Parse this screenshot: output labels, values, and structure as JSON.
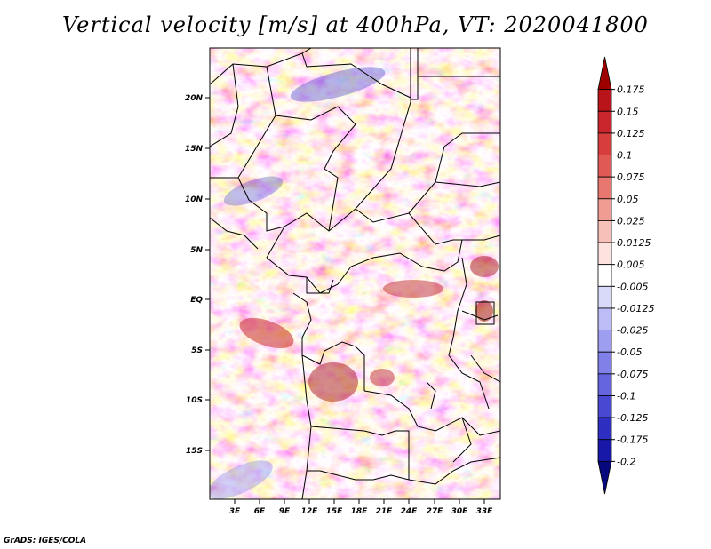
{
  "title": "Vertical velocity [m/s] at 400hPa, VT: 2020041800",
  "credit": "GrADS: IGES/COLA",
  "map": {
    "lat_ticks": [
      "20N",
      "15N",
      "10N",
      "5N",
      "EQ",
      "5S",
      "10S",
      "15S"
    ],
    "lon_ticks": [
      "3E",
      "6E",
      "9E",
      "12E",
      "15E",
      "18E",
      "21E",
      "24E",
      "27E",
      "30E",
      "33E"
    ]
  },
  "colorbar": {
    "labels": [
      "0.175",
      "0.15",
      "0.125",
      "0.1",
      "0.075",
      "0.05",
      "0.025",
      "0.0125",
      "0.005",
      "-0.005",
      "-0.0125",
      "-0.025",
      "-0.05",
      "-0.075",
      "-0.1",
      "-0.125",
      "-0.175",
      "-0.2"
    ],
    "colors": [
      "#9e0000",
      "#b8141a",
      "#c8262c",
      "#d63e3e",
      "#e05a55",
      "#e8786f",
      "#f09c92",
      "#f7c0b8",
      "#fde3df",
      "#ffffff",
      "#d9d9fa",
      "#bcbcf6",
      "#9e9ef0",
      "#8080e8",
      "#6464de",
      "#4848d2",
      "#2e2ec0",
      "#1818a8",
      "#08087e"
    ]
  }
}
